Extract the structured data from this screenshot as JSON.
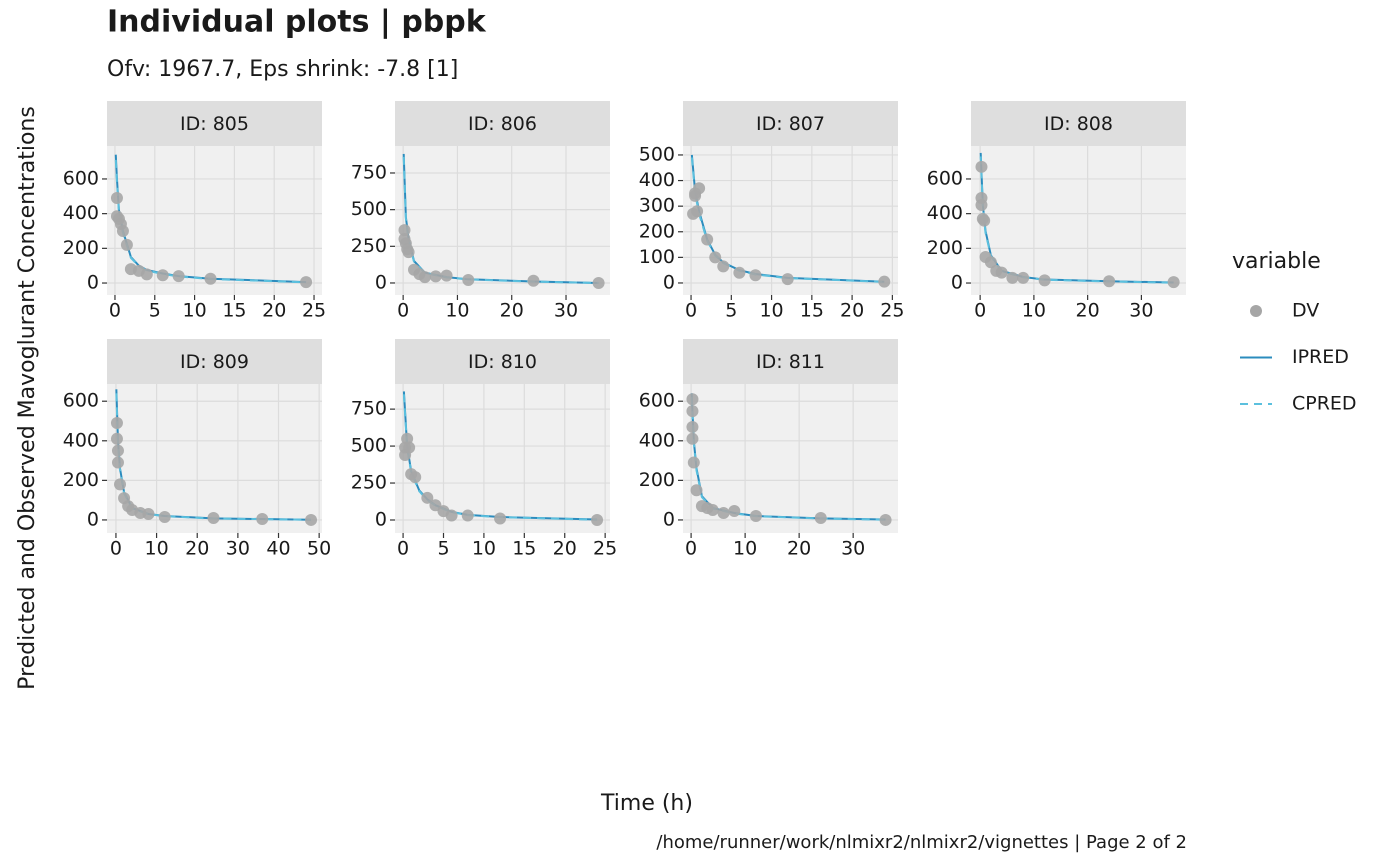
{
  "chart_data": {
    "type": "line",
    "title": "Individual plots | pbpk",
    "subtitle": "Ofv: 1967.7, Eps shrink: -7.8 [1]",
    "x_label": "Time (h)",
    "y_label": "Predicted and Observed Mavoglurant Concentrations",
    "caption": "/home/runner/work/nlmixr2/nlmixr2/vignettes | Page 2 of 2",
    "legend_title": "variable",
    "grid": true,
    "panels": [
      {
        "label": "ID: 805",
        "xlim": [
          -1,
          26
        ],
        "xticks": [
          0,
          5,
          10,
          15,
          20,
          25
        ],
        "ylim": [
          -69,
          790
        ],
        "yticks": [
          0,
          200,
          400,
          600
        ]
      },
      {
        "label": "ID: 806",
        "xlim": [
          -1.5,
          38.1
        ],
        "xticks": [
          0,
          10,
          20,
          30
        ],
        "ylim": [
          -82,
          934
        ],
        "yticks": [
          0,
          250,
          500,
          750
        ]
      },
      {
        "label": "ID: 807",
        "xlim": [
          -1,
          25.7
        ],
        "xticks": [
          0,
          5,
          10,
          15,
          20,
          25
        ],
        "ylim": [
          -47,
          535
        ],
        "yticks": [
          0,
          100,
          200,
          300,
          400,
          500
        ]
      },
      {
        "label": "ID: 808",
        "xlim": [
          -1.7,
          38.3
        ],
        "xticks": [
          0,
          10,
          20,
          30
        ],
        "ylim": [
          -69,
          790
        ],
        "yticks": [
          0,
          200,
          400,
          600
        ]
      },
      {
        "label": "ID: 809",
        "xlim": [
          -2.2,
          50.7
        ],
        "xticks": [
          0,
          10,
          20,
          30,
          40,
          50
        ],
        "ylim": [
          -66,
          687
        ],
        "yticks": [
          0,
          200,
          400,
          600
        ]
      },
      {
        "label": "ID: 810",
        "xlim": [
          -1,
          25.6
        ],
        "xticks": [
          0,
          5,
          10,
          15,
          20,
          25
        ],
        "ylim": [
          -88,
          920
        ],
        "yticks": [
          0,
          250,
          500,
          750
        ]
      },
      {
        "label": "ID: 811",
        "xlim": [
          -1.5,
          38.3
        ],
        "xticks": [
          0,
          10,
          20,
          30
        ],
        "ylim": [
          -66,
          687
        ],
        "yticks": [
          0,
          200,
          400,
          600
        ]
      }
    ],
    "series": [
      {
        "name": "DV",
        "color": "#a6a6a6",
        "style": "point",
        "data": [
          {
            "x": [
              0.25,
              0.25,
              0.5,
              0.75,
              1,
              1.5,
              2,
              3,
              4,
              6,
              8,
              12,
              24
            ],
            "values": [
              490,
              385,
              370,
              340,
              300,
              220,
              80,
              70,
              50,
              45,
              40,
              25,
              5
            ]
          },
          {
            "x": [
              0.25,
              0.25,
              0.5,
              0.75,
              1,
              2,
              3,
              4,
              6,
              8,
              12,
              24,
              36
            ],
            "values": [
              360,
              300,
              270,
              230,
              210,
              90,
              60,
              40,
              45,
              50,
              20,
              15,
              0
            ]
          },
          {
            "x": [
              0.25,
              0.5,
              0.5,
              0.75,
              1,
              2,
              3,
              4,
              6,
              8,
              12,
              24
            ],
            "values": [
              270,
              350,
              340,
              280,
              370,
              170,
              100,
              65,
              40,
              30,
              15,
              5
            ]
          },
          {
            "x": [
              0.25,
              0.25,
              0.25,
              0.5,
              0.75,
              1,
              2,
              3,
              4,
              6,
              8,
              12,
              24,
              36
            ],
            "values": [
              670,
              490,
              450,
              370,
              360,
              150,
              120,
              70,
              60,
              30,
              30,
              15,
              10,
              5
            ]
          },
          {
            "x": [
              0.25,
              0.25,
              0.5,
              0.5,
              1,
              2,
              3,
              4,
              6,
              8,
              12,
              24,
              36,
              48
            ],
            "values": [
              490,
              410,
              350,
              290,
              180,
              110,
              70,
              50,
              35,
              30,
              15,
              10,
              5,
              0
            ]
          },
          {
            "x": [
              0.25,
              0.25,
              0.5,
              0.75,
              1,
              1.5,
              3,
              4,
              5,
              6,
              8,
              12,
              24
            ],
            "values": [
              440,
              490,
              550,
              490,
              310,
              290,
              150,
              100,
              60,
              30,
              30,
              10,
              0
            ]
          },
          {
            "x": [
              0.25,
              0.25,
              0.25,
              0.25,
              0.5,
              1,
              2,
              3,
              4,
              6,
              8,
              12,
              24,
              36
            ],
            "values": [
              610,
              550,
              470,
              410,
              290,
              150,
              70,
              60,
              50,
              35,
              45,
              20,
              10,
              0
            ]
          }
        ]
      },
      {
        "name": "IPRED",
        "color": "#2b8cbe",
        "style": "solid",
        "data": [
          {
            "x": [
              0.1,
              0.25,
              0.5,
              1,
              2,
              3,
              4,
              6,
              8,
              12,
              24
            ],
            "values": [
              740,
              600,
              420,
              300,
              150,
              100,
              75,
              55,
              40,
              25,
              5
            ]
          },
          {
            "x": [
              0.1,
              0.5,
              1,
              2,
              4,
              8,
              12,
              24,
              36
            ],
            "values": [
              880,
              450,
              300,
              150,
              70,
              40,
              25,
              10,
              0
            ]
          },
          {
            "x": [
              0.1,
              0.5,
              1,
              2,
              3,
              4,
              6,
              8,
              12,
              24
            ],
            "values": [
              500,
              360,
              280,
              170,
              110,
              80,
              50,
              35,
              20,
              5
            ]
          },
          {
            "x": [
              0.1,
              0.5,
              1,
              2,
              4,
              8,
              12,
              24,
              36
            ],
            "values": [
              750,
              450,
              300,
              160,
              70,
              35,
              20,
              10,
              3
            ]
          },
          {
            "x": [
              0.1,
              0.5,
              1,
              2,
              4,
              8,
              12,
              24,
              48
            ],
            "values": [
              660,
              400,
              260,
              140,
              60,
              30,
              20,
              8,
              1
            ]
          },
          {
            "x": [
              0.1,
              0.5,
              1,
              2,
              3,
              4,
              6,
              8,
              12,
              24
            ],
            "values": [
              870,
              500,
              330,
              200,
              140,
              100,
              55,
              35,
              20,
              3
            ]
          },
          {
            "x": [
              0.1,
              0.5,
              1,
              2,
              4,
              8,
              12,
              24,
              36
            ],
            "values": [
              640,
              400,
              260,
              120,
              60,
              35,
              20,
              8,
              2
            ]
          }
        ]
      },
      {
        "name": "CPRED",
        "color": "#5bc0de",
        "style": "dashed",
        "data": [
          {
            "x": [
              0.1,
              0.25,
              0.5,
              1,
              2,
              3,
              4,
              6,
              8,
              12,
              24
            ],
            "values": [
              710,
              580,
              410,
              290,
              145,
              98,
              72,
              52,
              38,
              23,
              4
            ]
          },
          {
            "x": [
              0.1,
              0.5,
              1,
              2,
              4,
              8,
              12,
              24,
              36
            ],
            "values": [
              860,
              440,
              290,
              145,
              68,
              38,
              24,
              9,
              0
            ]
          },
          {
            "x": [
              0.1,
              0.5,
              1,
              2,
              3,
              4,
              6,
              8,
              12,
              24
            ],
            "values": [
              490,
              350,
              270,
              165,
              108,
              78,
              48,
              33,
              19,
              4
            ]
          },
          {
            "x": [
              0.1,
              0.5,
              1,
              2,
              4,
              8,
              12,
              24,
              36
            ],
            "values": [
              730,
              440,
              290,
              155,
              68,
              33,
              19,
              9,
              2
            ]
          },
          {
            "x": [
              0.1,
              0.5,
              1,
              2,
              4,
              8,
              12,
              24,
              48
            ],
            "values": [
              640,
              390,
              250,
              135,
              58,
              29,
              19,
              7,
              1
            ]
          },
          {
            "x": [
              0.1,
              0.5,
              1,
              2,
              3,
              4,
              6,
              8,
              12,
              24
            ],
            "values": [
              850,
              490,
              320,
              195,
              135,
              97,
              53,
              33,
              19,
              2
            ]
          },
          {
            "x": [
              0.1,
              0.5,
              1,
              2,
              4,
              8,
              12,
              24,
              36
            ],
            "values": [
              620,
              390,
              250,
              115,
              58,
              33,
              19,
              7,
              1
            ]
          }
        ]
      }
    ]
  }
}
